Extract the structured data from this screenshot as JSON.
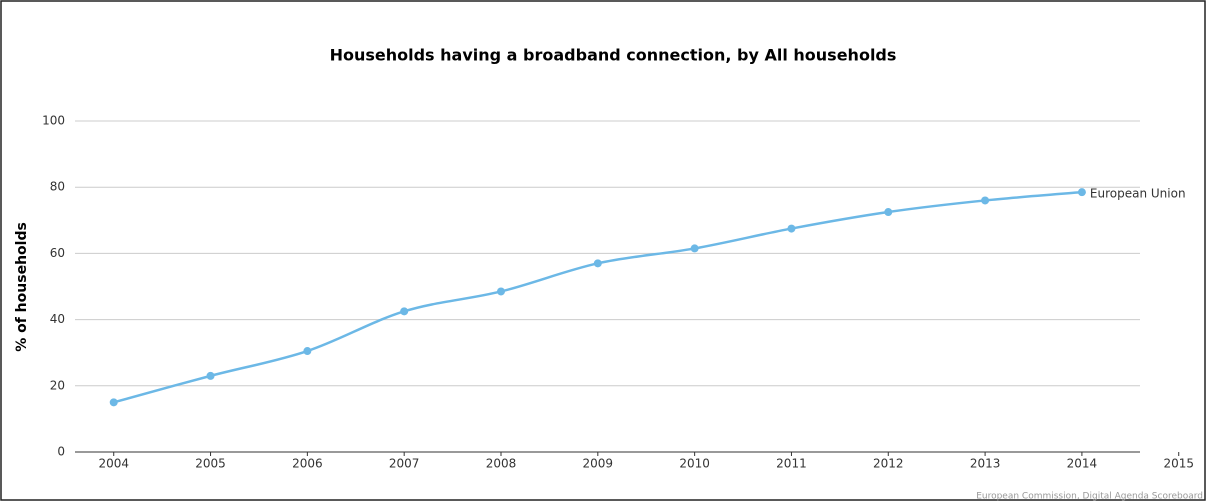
{
  "chart_data": {
    "type": "line",
    "title": "Households having a broadband connection, by All households",
    "y_label": "% of households",
    "credit": "European Commission, Digital Agenda Scoreboard",
    "x": [
      2004,
      2005,
      2006,
      2007,
      2008,
      2009,
      2010,
      2011,
      2012,
      2013,
      2014
    ],
    "series": [
      {
        "name": "European Union",
        "color": "#6cb8e6",
        "values": [
          15,
          23,
          30.5,
          42.5,
          48.5,
          57,
          61.5,
          67.5,
          72.5,
          76,
          78.5
        ]
      }
    ],
    "xlim": [
      2003.6,
      2014.6
    ],
    "xticks": [
      2004,
      2005,
      2006,
      2007,
      2008,
      2009,
      2010,
      2011,
      2012,
      2013,
      2014,
      2015
    ],
    "ylim": [
      0,
      100
    ],
    "yticks": [
      0,
      20,
      40,
      60,
      80,
      100
    ],
    "grid": true
  }
}
